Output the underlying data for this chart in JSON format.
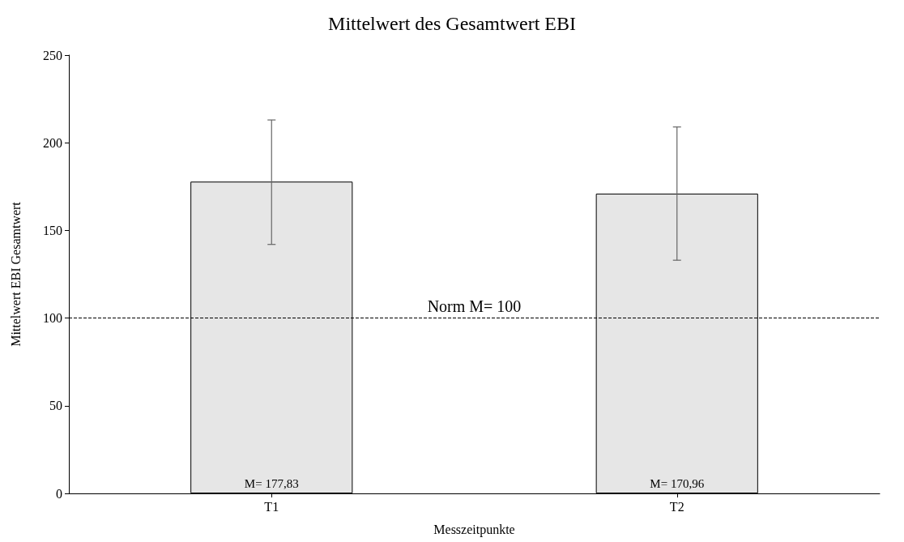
{
  "chart_data": {
    "type": "bar",
    "title": "Mittelwert des Gesamtwert EBI",
    "xlabel": "Messzeitpunkte",
    "ylabel": "Mittelwert EBI Gesamtwert",
    "categories": [
      "T1",
      "T2"
    ],
    "values": [
      177.83,
      170.96
    ],
    "value_labels": [
      "M= 177,83",
      "M= 170,96"
    ],
    "errors": [
      [
        142,
        213
      ],
      [
        133,
        209
      ]
    ],
    "color": "#e6e6e6",
    "ylim": [
      0,
      250
    ],
    "yticks": [
      0,
      50,
      100,
      150,
      200,
      250
    ],
    "ref_lines": [
      {
        "axis": "y",
        "value": 100,
        "label": "Norm M= 100",
        "color": "#000000",
        "line_style": "dashed"
      }
    ],
    "grid": false
  }
}
